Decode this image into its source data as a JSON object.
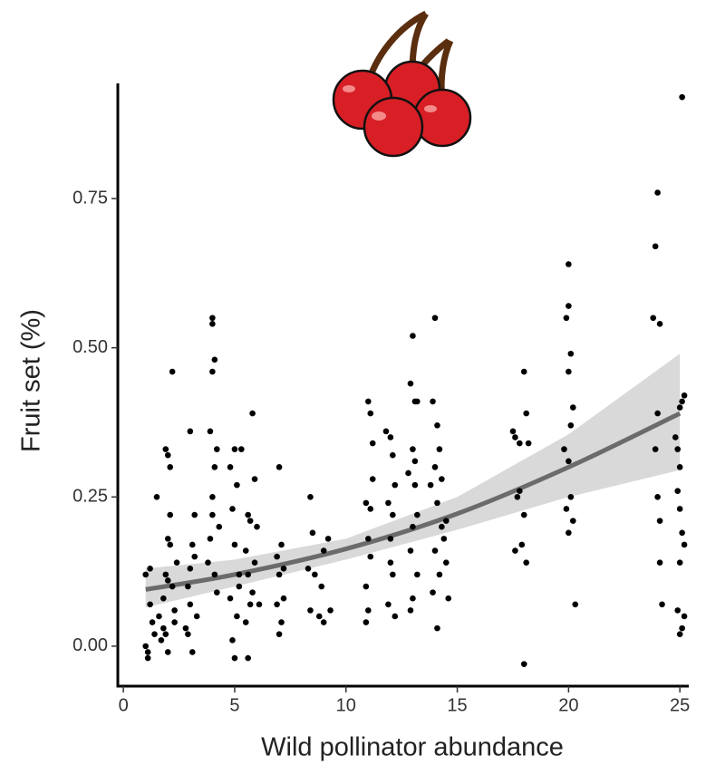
{
  "chart_data": {
    "type": "scatter",
    "x_label": "Wild pollinator abundance",
    "y_label": "Fruit set (%)",
    "xlim": [
      -0.25,
      25.4
    ],
    "ylim": [
      -0.067,
      0.943
    ],
    "xticks": [
      0,
      5,
      10,
      15,
      20,
      25
    ],
    "yticks": [
      {
        "value": 0,
        "label": "0.00"
      },
      {
        "value": 0.25,
        "label": "0.25"
      },
      {
        "value": 0.5,
        "label": "0.50"
      },
      {
        "value": 0.75,
        "label": "0.75"
      }
    ],
    "color": "#000000",
    "x": [
      1,
      1.1,
      1.2,
      1.0,
      1.3,
      1.2,
      1.1,
      1.4,
      1.5,
      1.6,
      1.8,
      1.9,
      2.0,
      2.1,
      2.2,
      2.0,
      2.1,
      1.9,
      2.2,
      1.8,
      2.3,
      1.7,
      2.0,
      2.4,
      2.1,
      1.9,
      2.3,
      2.0,
      3.0,
      3.1,
      3.2,
      2.9,
      3.0,
      3.3,
      2.8,
      3.1,
      3.2,
      2.9,
      3.0,
      4.0,
      4.0,
      4.1,
      4.0,
      3.9,
      4.2,
      4.1,
      4.0,
      3.9,
      4.3,
      4.1,
      4.2,
      3.8,
      4.0,
      5.0,
      4.8,
      5.1,
      4.9,
      5.0,
      5.2,
      4.8,
      5.1,
      4.9,
      5.0,
      5.3,
      5.2,
      5.8,
      5.6,
      5.7,
      5.9,
      5.5,
      5.6,
      5.8,
      5.7,
      5.5,
      5.6,
      6.0,
      6.1,
      5.9,
      7.0,
      6.9,
      7.1,
      7.0,
      7.2,
      6.9,
      7.1,
      7.0,
      7.2,
      8.4,
      8.5,
      8.3,
      8.6,
      8.4,
      8.8,
      9.0,
      9.2,
      9.0,
      8.9,
      9.3,
      11.0,
      11.1,
      11.2,
      10.9,
      11.0,
      11.1,
      10.9,
      11.0,
      10.9,
      11.2,
      11.1,
      11.8,
      12.0,
      12.1,
      12.2,
      11.9,
      12.0,
      12.1,
      11.9,
      12.2,
      12.0,
      12.1,
      13.0,
      12.9,
      13.1,
      13.2,
      13.0,
      12.8,
      13.1,
      13.0,
      12.9,
      13.2,
      13.0,
      12.9,
      13.1,
      13.2,
      14.0,
      13.9,
      14.1,
      14.2,
      14.0,
      13.8,
      14.1,
      14.3,
      14.0,
      14.2,
      13.9,
      14.1,
      14.4,
      14.5,
      14.6,
      14.3,
      14.5,
      17.5,
      17.6,
      17.8,
      18.0,
      18.1,
      17.7,
      18.0,
      17.9,
      17.6,
      18.1,
      18.0,
      17.8,
      18.2,
      20.0,
      20.0,
      19.9,
      20.1,
      20.0,
      20.2,
      20.1,
      19.8,
      20.0,
      20.1,
      19.9,
      20.2,
      20.0,
      20.3,
      24.0,
      23.9,
      23.8,
      24.1,
      24.0,
      23.9,
      24.0,
      24.1,
      24.2,
      24.1,
      25.1,
      25.2,
      25.1,
      25.0,
      24.8,
      24.9,
      25.0,
      24.9,
      25.0,
      25.1,
      25.2,
      25.0,
      25.2,
      25.1,
      25.0,
      24.9
    ],
    "values": [
      0.12,
      -0.02,
      0.07,
      0.0,
      0.04,
      0.13,
      -0.01,
      0.02,
      0.25,
      0.05,
      0.03,
      0.33,
      0.32,
      0.3,
      0.46,
      0.18,
      0.17,
      0.12,
      0.1,
      0.08,
      0.06,
      0.01,
      -0.01,
      0.14,
      0.22,
      0.02,
      0.04,
      0.11,
      0.36,
      0.17,
      0.22,
      0.1,
      0.07,
      0.05,
      0.03,
      -0.01,
      0.15,
      0.02,
      0.13,
      0.55,
      0.54,
      0.48,
      0.46,
      0.36,
      0.33,
      0.3,
      0.25,
      0.18,
      0.2,
      0.12,
      0.09,
      0.14,
      0.22,
      0.33,
      0.3,
      0.27,
      0.23,
      0.17,
      0.12,
      0.08,
      0.05,
      0.01,
      -0.02,
      0.33,
      0.1,
      0.39,
      0.22,
      0.21,
      0.28,
      0.16,
      0.12,
      0.09,
      0.07,
      0.04,
      -0.02,
      0.2,
      0.07,
      0.14,
      0.3,
      0.15,
      0.17,
      0.12,
      0.08,
      0.07,
      0.04,
      0.02,
      0.13,
      0.25,
      0.19,
      0.13,
      0.12,
      0.06,
      0.05,
      0.04,
      0.18,
      0.16,
      0.1,
      0.06,
      0.41,
      0.39,
      0.34,
      0.24,
      0.18,
      0.15,
      0.1,
      0.06,
      0.04,
      0.28,
      0.23,
      0.36,
      0.35,
      0.32,
      0.27,
      0.24,
      0.18,
      0.12,
      0.07,
      0.05,
      0.14,
      0.22,
      0.52,
      0.44,
      0.41,
      0.41,
      0.33,
      0.29,
      0.27,
      0.2,
      0.16,
      0.12,
      0.08,
      0.06,
      0.31,
      0.22,
      0.55,
      0.41,
      0.37,
      0.33,
      0.3,
      0.27,
      0.24,
      0.2,
      0.16,
      0.12,
      0.09,
      0.03,
      0.18,
      0.14,
      0.08,
      0.28,
      0.21,
      0.36,
      0.35,
      0.34,
      0.46,
      0.39,
      0.25,
      0.22,
      0.17,
      0.16,
      0.14,
      -0.03,
      0.26,
      0.34,
      0.64,
      0.57,
      0.55,
      0.49,
      0.46,
      0.4,
      0.37,
      0.33,
      0.31,
      0.25,
      0.23,
      0.21,
      0.19,
      0.07,
      0.76,
      0.67,
      0.55,
      0.54,
      0.39,
      0.33,
      0.25,
      0.21,
      0.07,
      0.14,
      0.92,
      0.42,
      0.41,
      0.4,
      0.35,
      0.33,
      0.3,
      0.26,
      0.23,
      0.19,
      0.17,
      0.14,
      0.05,
      0.03,
      0.02,
      0.06
    ],
    "fit": {
      "color": "#6b6b6b",
      "band_color": "#d9d9d9",
      "x": [
        1,
        5,
        10,
        15,
        20,
        25
      ],
      "values": [
        0.095,
        0.12,
        0.163,
        0.222,
        0.3,
        0.39
      ],
      "lower": [
        0.065,
        0.1,
        0.145,
        0.195,
        0.25,
        0.295
      ],
      "upper": [
        0.13,
        0.145,
        0.18,
        0.25,
        0.355,
        0.49
      ]
    }
  }
}
